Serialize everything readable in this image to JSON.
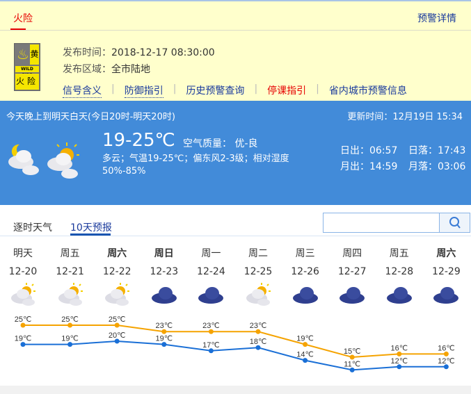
{
  "warning": {
    "tab": "火险",
    "detail_link": "预警详情",
    "badge": {
      "level": "黄",
      "en": "WILD FIRE",
      "cn": "火险"
    },
    "issue_time_label": "发布时间：",
    "issue_time": "2018-12-17 08:30:00",
    "area_label": "发布区域：",
    "area": "全市陆地",
    "links": [
      "信号含义",
      "防御指引",
      "历史预警查询",
      "停课指引",
      "省内城市预警信息"
    ]
  },
  "current": {
    "period": "今天晚上到明天白天(今日20时-明天20时)",
    "updated": "更新时间：12月19日 15:34",
    "icons": [
      "night-partly-cloudy-icon",
      "day-partly-cloudy-icon"
    ],
    "temp": "19-25℃",
    "aqi": "空气质量： 优-良",
    "desc": "多云；气温19-25℃；偏东风2-3级；相对湿度50%-85%",
    "sunrise": "日出：06:57",
    "sunset": "日落：17:43",
    "moonrise": "月出：14:59",
    "moonset": "月落：03:06"
  },
  "forecast": {
    "tabs": [
      "逐时天气",
      "10天预报"
    ],
    "active_tab": "10天预报",
    "search_placeholder": "",
    "days": [
      {
        "week": "明天",
        "date": "12-20",
        "icon": "partly-cloudy",
        "bold": false
      },
      {
        "week": "周五",
        "date": "12-21",
        "icon": "partly-cloudy",
        "bold": false
      },
      {
        "week": "周六",
        "date": "12-22",
        "icon": "partly-cloudy",
        "bold": true
      },
      {
        "week": "周日",
        "date": "12-23",
        "icon": "cloudy",
        "bold": true
      },
      {
        "week": "周一",
        "date": "12-24",
        "icon": "cloudy",
        "bold": false
      },
      {
        "week": "周二",
        "date": "12-25",
        "icon": "partly-cloudy",
        "bold": false
      },
      {
        "week": "周三",
        "date": "12-26",
        "icon": "cloudy",
        "bold": false
      },
      {
        "week": "周四",
        "date": "12-27",
        "icon": "cloudy",
        "bold": false
      },
      {
        "week": "周五",
        "date": "12-28",
        "icon": "cloudy",
        "bold": false
      },
      {
        "week": "周六",
        "date": "12-29",
        "icon": "cloudy",
        "bold": true
      }
    ]
  },
  "chart_data": {
    "type": "line",
    "x": [
      "12-20",
      "12-21",
      "12-22",
      "12-23",
      "12-24",
      "12-25",
      "12-26",
      "12-27",
      "12-28",
      "12-29"
    ],
    "series": [
      {
        "values": [
          25,
          25,
          25,
          23,
          23,
          23,
          19,
          15,
          16,
          16
        ],
        "color": "#f5a300"
      },
      {
        "values": [
          19,
          19,
          20,
          19,
          17,
          18,
          14,
          11,
          12,
          12
        ],
        "color": "#1a6fd6"
      }
    ],
    "unit": "℃"
  }
}
